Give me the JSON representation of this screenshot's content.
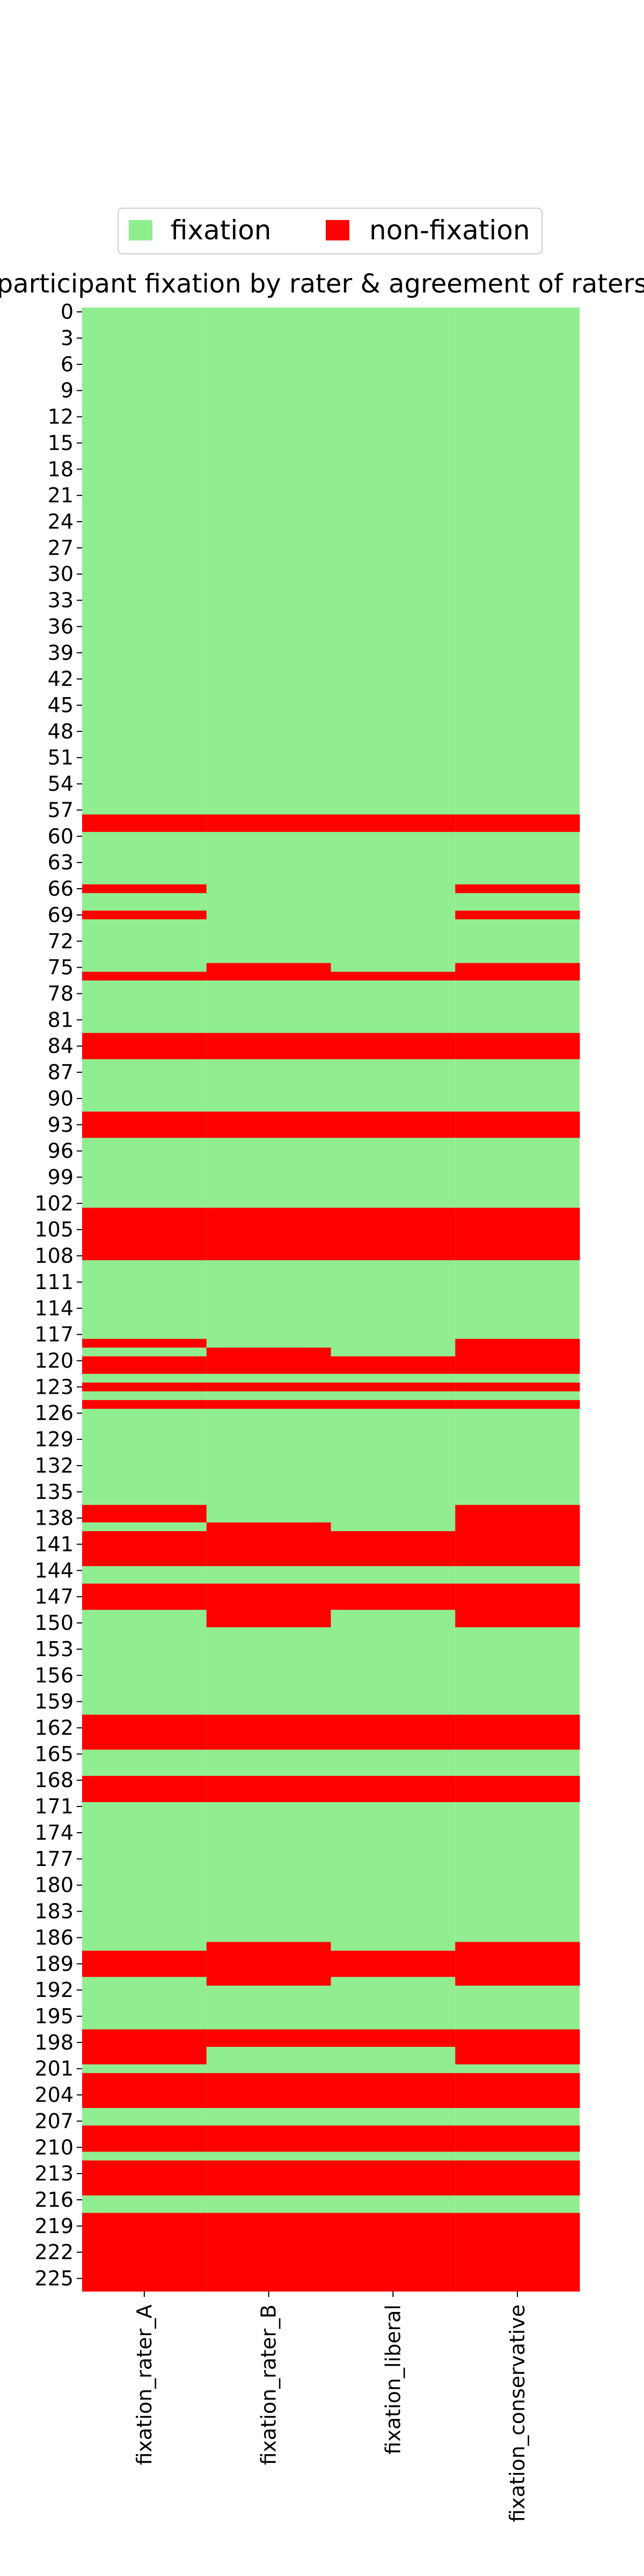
{
  "chart_data": {
    "type": "heatmap",
    "title": "participant fixation by rater & agreement of raters",
    "xlabel": "",
    "ylabel": "",
    "columns": [
      "fixation_rater_A",
      "fixation_rater_B",
      "fixation_liberal",
      "fixation_conservative"
    ],
    "n_rows": 227,
    "row_tick_step": 3,
    "row_ticks": [
      0,
      3,
      6,
      9,
      12,
      15,
      18,
      21,
      24,
      27,
      30,
      33,
      36,
      39,
      42,
      45,
      48,
      51,
      54,
      57,
      60,
      63,
      66,
      69,
      72,
      75,
      78,
      81,
      84,
      87,
      90,
      93,
      96,
      99,
      102,
      105,
      108,
      111,
      114,
      117,
      120,
      123,
      126,
      129,
      132,
      135,
      138,
      141,
      144,
      147,
      150,
      153,
      156,
      159,
      162,
      165,
      168,
      171,
      174,
      177,
      180,
      183,
      186,
      189,
      192,
      195,
      198,
      201,
      204,
      207,
      210,
      213,
      216,
      219,
      222,
      225
    ],
    "categories": [
      "fixation",
      "non-fixation"
    ],
    "colors": {
      "fixation": "#90EE90",
      "non-fixation": "#FF0000"
    },
    "legend": {
      "position": "top-center",
      "entries": [
        "fixation",
        "non-fixation"
      ]
    },
    "non_fixation_ranges": {
      "fixation_rater_A": [
        [
          58,
          59
        ],
        [
          66,
          66
        ],
        [
          69,
          69
        ],
        [
          76,
          76
        ],
        [
          83,
          85
        ],
        [
          92,
          94
        ],
        [
          103,
          108
        ],
        [
          118,
          118
        ],
        [
          120,
          121
        ],
        [
          123,
          123
        ],
        [
          125,
          125
        ],
        [
          137,
          138
        ],
        [
          140,
          143
        ],
        [
          146,
          148
        ],
        [
          161,
          164
        ],
        [
          168,
          170
        ],
        [
          188,
          190
        ],
        [
          197,
          200
        ],
        [
          202,
          205
        ],
        [
          208,
          210
        ],
        [
          212,
          215
        ],
        [
          218,
          226
        ]
      ],
      "fixation_rater_B": [
        [
          58,
          59
        ],
        [
          75,
          76
        ],
        [
          83,
          85
        ],
        [
          92,
          94
        ],
        [
          103,
          108
        ],
        [
          119,
          121
        ],
        [
          123,
          123
        ],
        [
          125,
          125
        ],
        [
          139,
          143
        ],
        [
          146,
          150
        ],
        [
          161,
          164
        ],
        [
          168,
          170
        ],
        [
          187,
          191
        ],
        [
          197,
          198
        ],
        [
          202,
          205
        ],
        [
          208,
          210
        ],
        [
          212,
          215
        ],
        [
          218,
          226
        ]
      ],
      "fixation_liberal": [
        [
          58,
          59
        ],
        [
          76,
          76
        ],
        [
          83,
          85
        ],
        [
          92,
          94
        ],
        [
          103,
          108
        ],
        [
          120,
          121
        ],
        [
          123,
          123
        ],
        [
          125,
          125
        ],
        [
          140,
          143
        ],
        [
          146,
          148
        ],
        [
          161,
          164
        ],
        [
          168,
          170
        ],
        [
          188,
          190
        ],
        [
          197,
          198
        ],
        [
          202,
          205
        ],
        [
          208,
          210
        ],
        [
          212,
          215
        ],
        [
          218,
          226
        ]
      ],
      "fixation_conservative": [
        [
          58,
          59
        ],
        [
          66,
          66
        ],
        [
          69,
          69
        ],
        [
          75,
          76
        ],
        [
          83,
          85
        ],
        [
          92,
          94
        ],
        [
          103,
          108
        ],
        [
          118,
          121
        ],
        [
          123,
          123
        ],
        [
          125,
          125
        ],
        [
          137,
          143
        ],
        [
          146,
          150
        ],
        [
          161,
          164
        ],
        [
          168,
          170
        ],
        [
          187,
          191
        ],
        [
          197,
          200
        ],
        [
          202,
          205
        ],
        [
          208,
          210
        ],
        [
          212,
          215
        ],
        [
          218,
          226
        ]
      ]
    }
  }
}
